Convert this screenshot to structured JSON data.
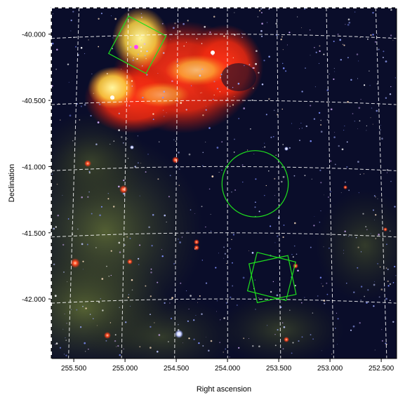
{
  "figure": {
    "xlabel": "Right ascension",
    "ylabel": "Declination",
    "x_ticks": [
      "255.500",
      "255.000",
      "254.500",
      "254.000",
      "253.500",
      "253.000",
      "252.500"
    ],
    "x_tick_values": [
      255.5,
      255.0,
      254.5,
      254.0,
      253.5,
      253.0,
      252.5
    ],
    "y_ticks": [
      "-40.000",
      "-40.500",
      "-41.000",
      "-41.500",
      "-42.000"
    ],
    "y_tick_values": [
      -40.0,
      -40.5,
      -41.0,
      -41.5,
      -42.0
    ],
    "xlim": [
      255.72,
      252.35
    ],
    "ylim": [
      -42.45,
      -39.8
    ],
    "grid": true,
    "colors": {
      "sky": "#0a0d2a",
      "nebula_red": "#ff2a12",
      "nebula_yellow": "#ffe066",
      "dust_green": "#5a6a30",
      "overlay": "#1ee01e",
      "grid": "#ffffff"
    },
    "overlays": [
      {
        "shape": "square",
        "ra": 254.88,
        "dec": -40.08,
        "side_deg": 0.32,
        "rotation_deg": 28
      },
      {
        "shape": "circle",
        "ra": 253.73,
        "dec": -41.13,
        "radius_deg": 0.25
      },
      {
        "shape": "square",
        "ra": 253.57,
        "dec": -41.83,
        "side_deg": 0.3,
        "rotation_deg": 14
      },
      {
        "shape": "square",
        "ra": 253.56,
        "dec": -41.85,
        "side_deg": 0.3,
        "rotation_deg": -12
      }
    ]
  }
}
